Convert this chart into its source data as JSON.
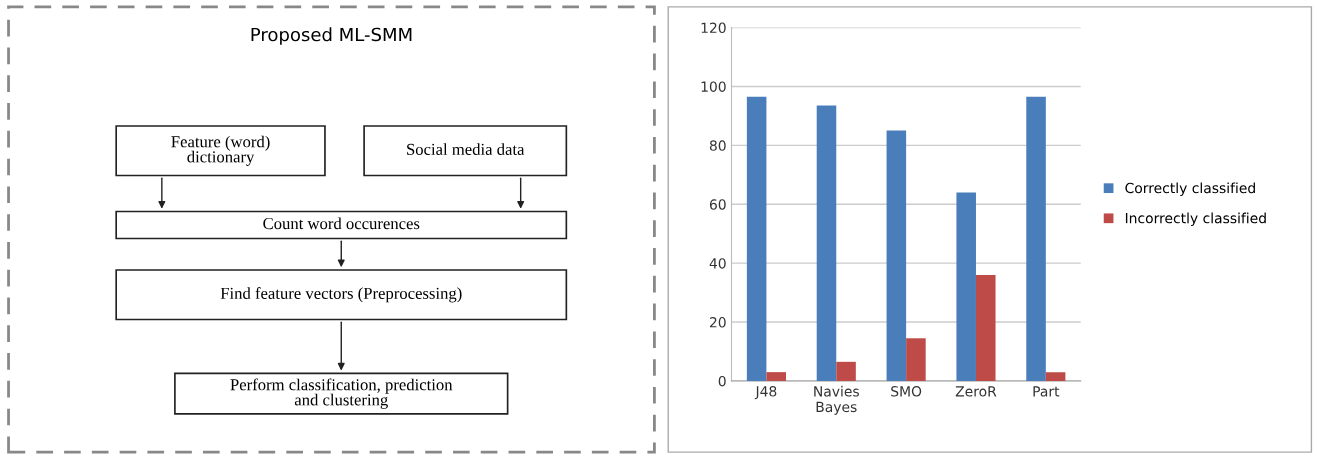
{
  "chart_data": [
    {
      "type": "other",
      "title": "Proposed ML-SMM",
      "annotations": [
        "Feature (word)\ndictionary",
        "Social media data",
        "Count word occurences",
        "Find feature vectors (Preprocessing)",
        "Perform classification, prediction\nand clustering"
      ]
    },
    {
      "type": "bar",
      "categories": [
        "J48",
        "Navies\nBayes",
        "SMO",
        "ZeroR",
        "Part"
      ],
      "series": [
        {
          "name": "Correctly classified",
          "color": "#4a7ebb",
          "values": [
            96.5,
            93.5,
            85,
            64,
            96.5
          ]
        },
        {
          "name": "Incorrectly classified",
          "color": "#be4b48",
          "values": [
            3,
            6.5,
            14.5,
            36,
            3
          ]
        }
      ],
      "ylim": [
        0,
        120
      ],
      "yticks": [
        0,
        20,
        40,
        60,
        80,
        100,
        120
      ],
      "grid": "y",
      "legend": "right"
    }
  ]
}
